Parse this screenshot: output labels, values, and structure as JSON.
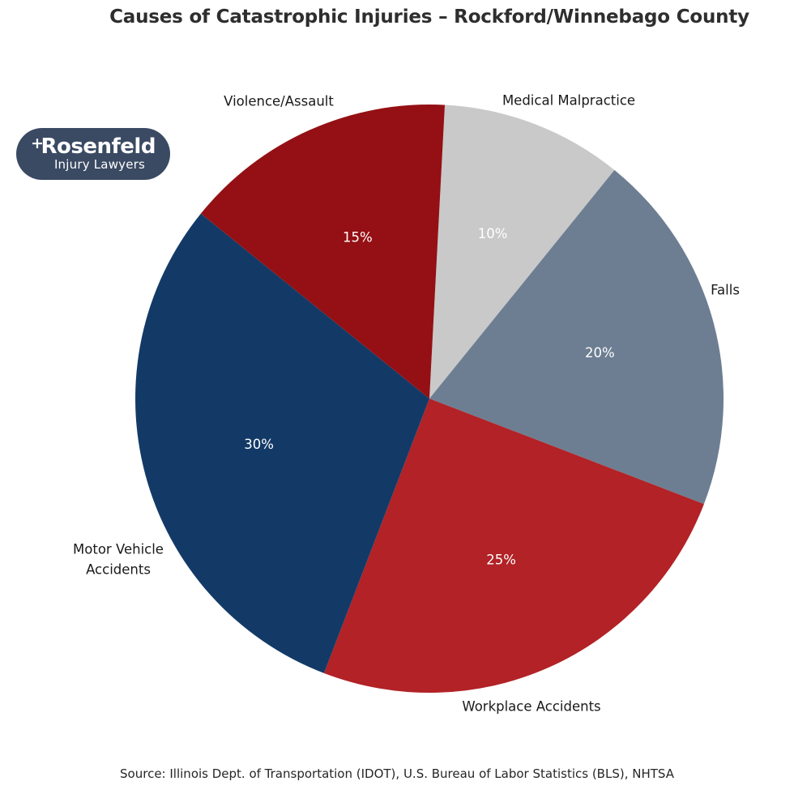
{
  "title": "Causes of Catastrophic Injuries – Rockford/Winnebago County",
  "logo": {
    "plus_mark": "+",
    "brand": "Rosenfeld",
    "tagline": "Injury Lawyers",
    "bg_color": "#3b4a63",
    "text_color": "#ffffff"
  },
  "source": "Source: Illinois Dept. of Transportation (IDOT), U.S. Bureau of Labor Statistics (BLS), NHTSA",
  "chart_data": {
    "type": "pie",
    "title": "Causes of Catastrophic Injuries – Rockford/Winnebago County",
    "start_angle_deg": 87,
    "direction": "clockwise",
    "background": "#ffffff",
    "percent_label_color": "#ffffff",
    "outer_label_color": "#1a1a1a",
    "slices": [
      {
        "label": "Medical Malpractice",
        "value": 10,
        "pct_label": "10%",
        "color": "#c9c9c9"
      },
      {
        "label": "Falls",
        "value": 20,
        "pct_label": "20%",
        "color": "#6d7e92"
      },
      {
        "label": "Workplace Accidents",
        "value": 25,
        "pct_label": "25%",
        "color": "#b22226"
      },
      {
        "label": "Motor Vehicle Accidents",
        "value": 30,
        "pct_label": "30%",
        "color": "#133a67"
      },
      {
        "label": "Violence/Assault",
        "value": 15,
        "pct_label": "15%",
        "color": "#941014"
      }
    ]
  }
}
